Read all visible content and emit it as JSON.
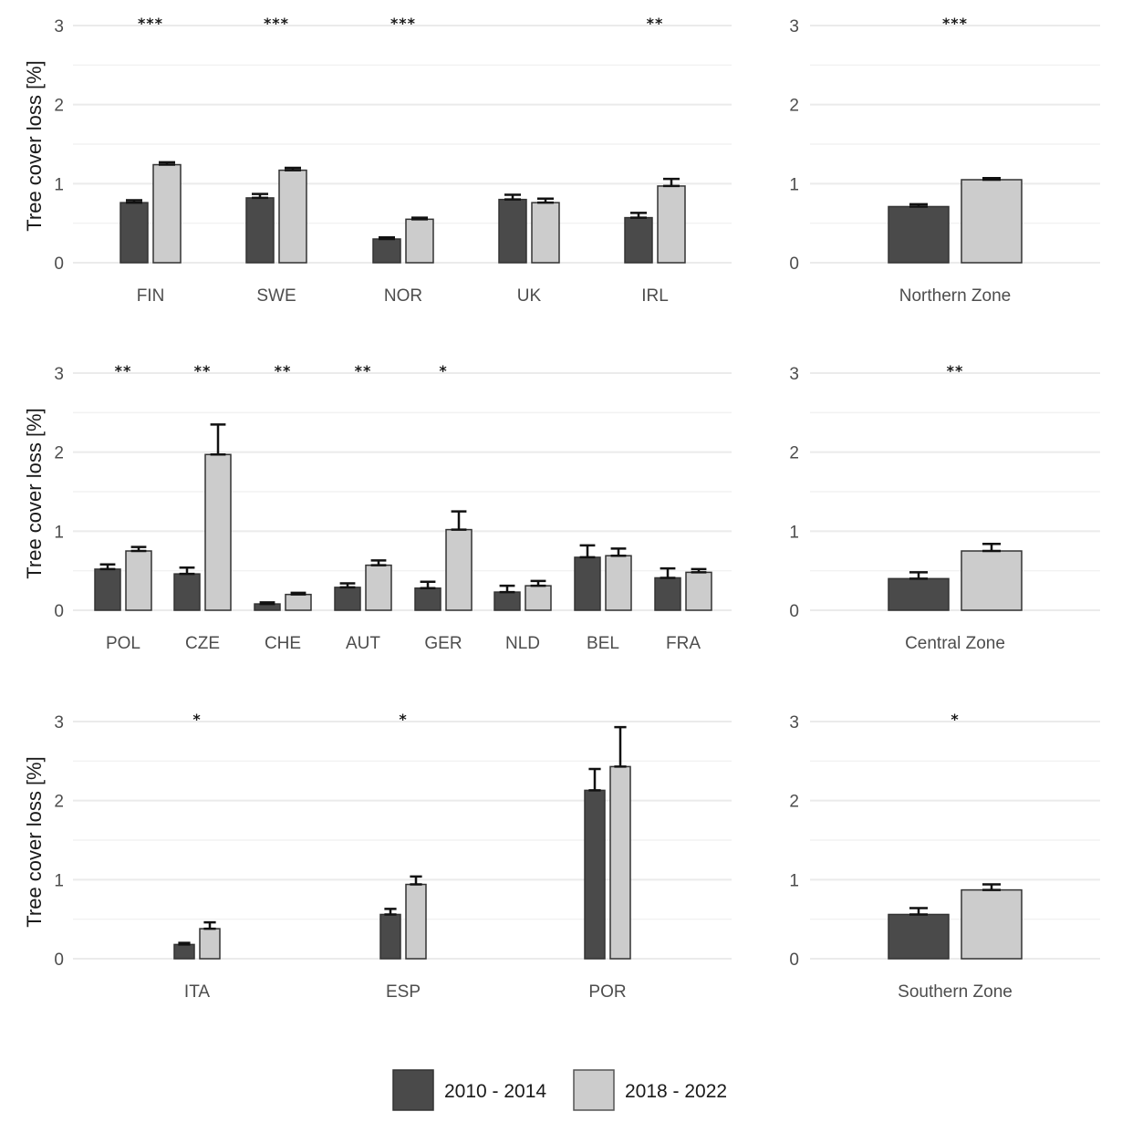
{
  "chart_data": [
    {
      "type": "bar",
      "panel": "row1-countries",
      "ylabel": "Tree cover loss [%]",
      "ylim": [
        0,
        3
      ],
      "yticks": [
        "0",
        "1",
        "2",
        "3"
      ],
      "grid": true,
      "categories": [
        "FIN",
        "SWE",
        "NOR",
        "UK",
        "IRL"
      ],
      "significance": [
        "***",
        "***",
        "***",
        "",
        "**"
      ],
      "series": [
        {
          "name": "2010 - 2014",
          "values": [
            0.76,
            0.82,
            0.3,
            0.8,
            0.57
          ],
          "errors": [
            0.03,
            0.05,
            0.02,
            0.06,
            0.06
          ]
        },
        {
          "name": "2018 - 2022",
          "values": [
            1.24,
            1.17,
            0.55,
            0.76,
            0.97
          ],
          "errors": [
            0.03,
            0.03,
            0.02,
            0.05,
            0.09
          ]
        }
      ]
    },
    {
      "type": "bar",
      "panel": "row1-zone",
      "ylabel": "",
      "ylim": [
        0,
        3
      ],
      "yticks": [
        "0",
        "1",
        "2",
        "3"
      ],
      "grid": true,
      "categories": [
        "Northern Zone"
      ],
      "significance": [
        "***"
      ],
      "series": [
        {
          "name": "2010 - 2014",
          "values": [
            0.71
          ],
          "errors": [
            0.03
          ]
        },
        {
          "name": "2018 - 2022",
          "values": [
            1.05
          ],
          "errors": [
            0.02
          ]
        }
      ]
    },
    {
      "type": "bar",
      "panel": "row2-countries",
      "ylabel": "Tree cover loss [%]",
      "ylim": [
        0,
        3
      ],
      "yticks": [
        "0",
        "1",
        "2",
        "3"
      ],
      "grid": true,
      "categories": [
        "POL",
        "CZE",
        "CHE",
        "AUT",
        "GER",
        "NLD",
        "BEL",
        "FRA"
      ],
      "significance": [
        "**",
        "**",
        "**",
        "**",
        "*",
        "",
        "",
        ""
      ],
      "series": [
        {
          "name": "2010 - 2014",
          "values": [
            0.52,
            0.46,
            0.08,
            0.29,
            0.28,
            0.23,
            0.67,
            0.41
          ],
          "errors": [
            0.06,
            0.08,
            0.02,
            0.05,
            0.08,
            0.08,
            0.15,
            0.12
          ]
        },
        {
          "name": "2018 - 2022",
          "values": [
            0.75,
            1.97,
            0.2,
            0.57,
            1.02,
            0.31,
            0.69,
            0.48
          ],
          "errors": [
            0.05,
            0.38,
            0.02,
            0.06,
            0.23,
            0.06,
            0.09,
            0.04
          ]
        }
      ]
    },
    {
      "type": "bar",
      "panel": "row2-zone",
      "ylabel": "",
      "ylim": [
        0,
        3
      ],
      "yticks": [
        "0",
        "1",
        "2",
        "3"
      ],
      "grid": true,
      "categories": [
        "Central Zone"
      ],
      "significance": [
        "**"
      ],
      "series": [
        {
          "name": "2010 - 2014",
          "values": [
            0.4
          ],
          "errors": [
            0.08
          ]
        },
        {
          "name": "2018 - 2022",
          "values": [
            0.75
          ],
          "errors": [
            0.09
          ]
        }
      ]
    },
    {
      "type": "bar",
      "panel": "row3-countries",
      "ylabel": "Tree cover loss [%]",
      "ylim": [
        0,
        3
      ],
      "yticks": [
        "0",
        "1",
        "2",
        "3"
      ],
      "grid": true,
      "categories": [
        "ITA",
        "ESP",
        "POR"
      ],
      "significance": [
        "*",
        "*",
        ""
      ],
      "series": [
        {
          "name": "2010 - 2014",
          "values": [
            0.18,
            0.56,
            2.13
          ],
          "errors": [
            0.02,
            0.07,
            0.27
          ]
        },
        {
          "name": "2018 - 2022",
          "values": [
            0.38,
            0.94,
            2.43
          ],
          "errors": [
            0.08,
            0.1,
            0.5
          ]
        }
      ]
    },
    {
      "type": "bar",
      "panel": "row3-zone",
      "ylabel": "",
      "ylim": [
        0,
        3
      ],
      "yticks": [
        "0",
        "1",
        "2",
        "3"
      ],
      "grid": true,
      "categories": [
        "Southern Zone"
      ],
      "significance": [
        "*"
      ],
      "series": [
        {
          "name": "2010 - 2014",
          "values": [
            0.56
          ],
          "errors": [
            0.08
          ]
        },
        {
          "name": "2018 - 2022",
          "values": [
            0.87
          ],
          "errors": [
            0.07
          ]
        }
      ]
    }
  ],
  "legend": {
    "position": "bottom-center",
    "items": [
      {
        "label": "2010 - 2014",
        "color": "#4a4a4a"
      },
      {
        "label": "2018 - 2022",
        "color": "#cccccc"
      }
    ]
  },
  "colors": {
    "series_dark": "#4a4a4a",
    "series_light": "#cccccc",
    "bar_outline": "#333333"
  }
}
